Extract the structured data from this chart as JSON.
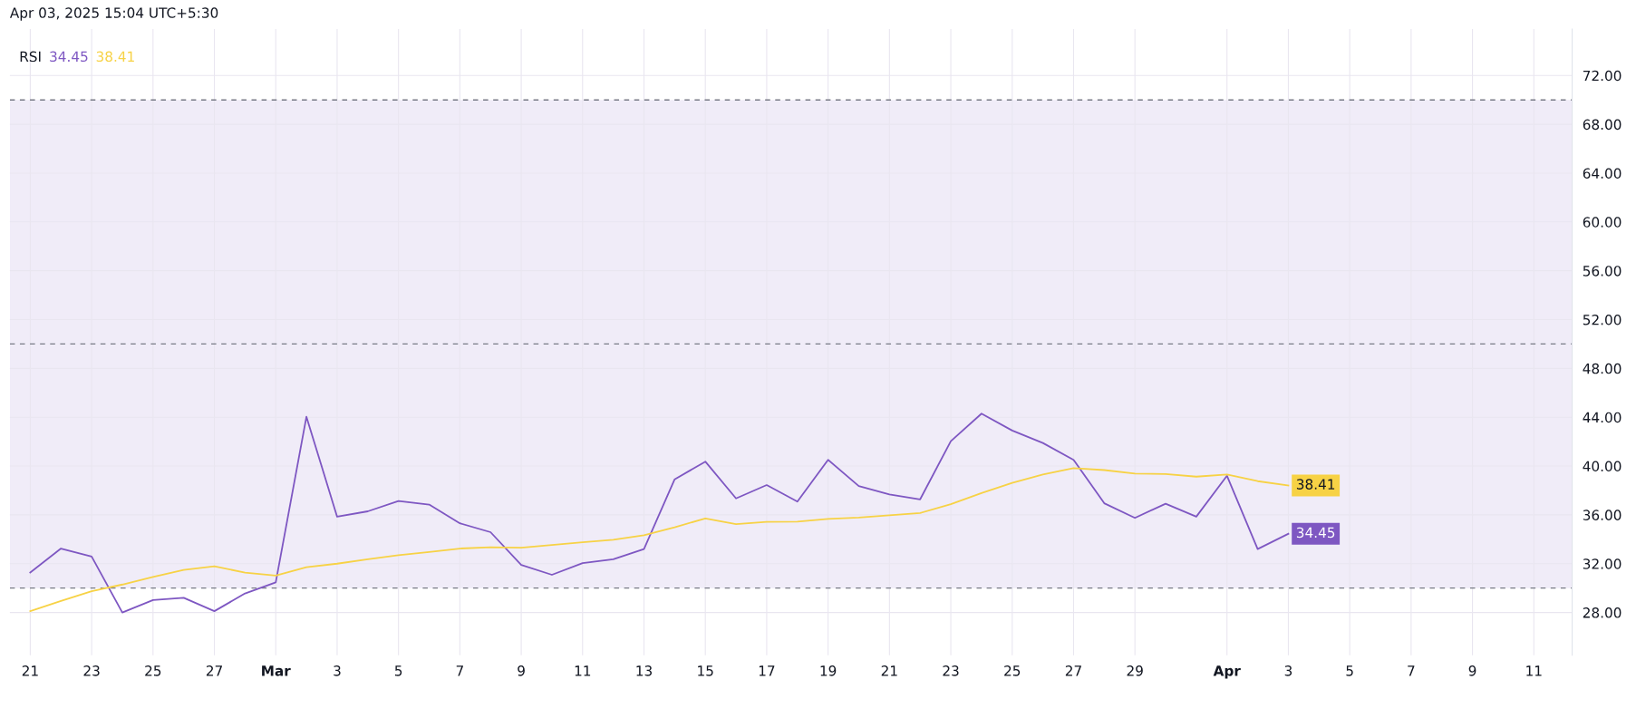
{
  "chart_data": {
    "type": "line",
    "title": "RSI",
    "annotations": [
      "Apr 03, 2025 15:04 UTC+5:30"
    ],
    "x": [
      "2025-02-21",
      "2025-02-22",
      "2025-02-23",
      "2025-02-24",
      "2025-02-25",
      "2025-02-26",
      "2025-02-27",
      "2025-02-28",
      "2025-03-01",
      "2025-03-02",
      "2025-03-03",
      "2025-03-04",
      "2025-03-05",
      "2025-03-06",
      "2025-03-07",
      "2025-03-08",
      "2025-03-09",
      "2025-03-10",
      "2025-03-11",
      "2025-03-12",
      "2025-03-13",
      "2025-03-14",
      "2025-03-15",
      "2025-03-16",
      "2025-03-17",
      "2025-03-18",
      "2025-03-19",
      "2025-03-20",
      "2025-03-21",
      "2025-03-22",
      "2025-03-23",
      "2025-03-24",
      "2025-03-25",
      "2025-03-26",
      "2025-03-27",
      "2025-03-28",
      "2025-03-29",
      "2025-03-30",
      "2025-03-31",
      "2025-04-01",
      "2025-04-02",
      "2025-04-03"
    ],
    "series": [
      {
        "color": "#7e57c2",
        "values": [
          31.27,
          33.24,
          32.58,
          28.0,
          29.02,
          29.2,
          28.11,
          29.56,
          30.47,
          44.04,
          35.85,
          36.29,
          37.13,
          36.84,
          35.31,
          34.58,
          31.89,
          31.09,
          32.04,
          32.36,
          33.2,
          38.91,
          40.36,
          37.35,
          38.44,
          37.09,
          40.51,
          38.36,
          37.67,
          37.27,
          42.04,
          44.29,
          42.91,
          41.89,
          40.51,
          36.95,
          35.75,
          36.91,
          35.85,
          39.2,
          33.2,
          34.45
        ],
        "value_labels": [
          null,
          null,
          null,
          null,
          null,
          null,
          null,
          null,
          null,
          null,
          null,
          null,
          null,
          null,
          null,
          null,
          null,
          null,
          null,
          null,
          null,
          null,
          null,
          null,
          null,
          null,
          null,
          null,
          null,
          null,
          null,
          null,
          null,
          null,
          null,
          null,
          null,
          null,
          null,
          null,
          null,
          "34.45"
        ]
      },
      {
        "color": "#f7d245",
        "values": [
          28.11,
          28.95,
          29.75,
          30.29,
          30.91,
          31.49,
          31.78,
          31.27,
          31.02,
          31.71,
          32.0,
          32.36,
          32.69,
          32.95,
          33.24,
          33.35,
          33.31,
          33.53,
          33.75,
          33.96,
          34.33,
          34.98,
          35.71,
          35.24,
          35.42,
          35.45,
          35.67,
          35.78,
          35.96,
          36.15,
          36.87,
          37.78,
          38.62,
          39.31,
          39.82,
          39.67,
          39.38,
          39.35,
          39.13,
          39.31,
          38.76,
          38.41
        ],
        "value_labels": [
          null,
          null,
          null,
          null,
          null,
          null,
          null,
          null,
          null,
          null,
          null,
          null,
          null,
          null,
          null,
          null,
          null,
          null,
          null,
          null,
          null,
          null,
          null,
          null,
          null,
          null,
          null,
          null,
          null,
          null,
          null,
          null,
          null,
          null,
          null,
          null,
          null,
          null,
          null,
          null,
          null,
          "38.41"
        ]
      }
    ],
    "xlim": [
      "2025-02-20T08:00",
      "2025-04-12T06:00"
    ],
    "xticks": [
      {
        "value": "2025-02-21",
        "label": "21"
      },
      {
        "value": "2025-02-23",
        "label": "23"
      },
      {
        "value": "2025-02-25",
        "label": "25"
      },
      {
        "value": "2025-02-27",
        "label": "27"
      },
      {
        "value": "2025-03-01",
        "label": "Mar"
      },
      {
        "value": "2025-03-03",
        "label": "3"
      },
      {
        "value": "2025-03-05",
        "label": "5"
      },
      {
        "value": "2025-03-07",
        "label": "7"
      },
      {
        "value": "2025-03-09",
        "label": "9"
      },
      {
        "value": "2025-03-11",
        "label": "11"
      },
      {
        "value": "2025-03-13",
        "label": "13"
      },
      {
        "value": "2025-03-15",
        "label": "15"
      },
      {
        "value": "2025-03-17",
        "label": "17"
      },
      {
        "value": "2025-03-19",
        "label": "19"
      },
      {
        "value": "2025-03-21",
        "label": "21"
      },
      {
        "value": "2025-03-23",
        "label": "23"
      },
      {
        "value": "2025-03-25",
        "label": "25"
      },
      {
        "value": "2025-03-27",
        "label": "27"
      },
      {
        "value": "2025-03-29",
        "label": "29"
      },
      {
        "value": "2025-04-01",
        "label": "Apr"
      },
      {
        "value": "2025-04-03",
        "label": "3"
      },
      {
        "value": "2025-04-05",
        "label": "5"
      },
      {
        "value": "2025-04-07",
        "label": "7"
      },
      {
        "value": "2025-04-09",
        "label": "9"
      },
      {
        "value": "2025-04-11",
        "label": "11"
      }
    ],
    "ylim": [
      24.5,
      75.8
    ],
    "yticks": [
      {
        "value": 28,
        "label": "28.00"
      },
      {
        "value": 32,
        "label": "32.00"
      },
      {
        "value": 36,
        "label": "36.00"
      },
      {
        "value": 40,
        "label": "40.00"
      },
      {
        "value": 44,
        "label": "44.00"
      },
      {
        "value": 48,
        "label": "48.00"
      },
      {
        "value": 52,
        "label": "52.00"
      },
      {
        "value": 56,
        "label": "56.00"
      },
      {
        "value": 60,
        "label": "60.00"
      },
      {
        "value": 64,
        "label": "64.00"
      },
      {
        "value": 68,
        "label": "68.00"
      },
      {
        "value": 72,
        "label": "72.00"
      }
    ],
    "ref_lines": [
      {
        "axis": "y",
        "value": 70,
        "color": "#787b86",
        "line_style": "dashed"
      },
      {
        "axis": "y",
        "value": 50,
        "color": "#787b86",
        "line_style": "dashed"
      },
      {
        "axis": "y",
        "value": 30,
        "color": "#787b86",
        "line_style": "dashed"
      }
    ],
    "bands": [
      {
        "axis": "y",
        "from": 30,
        "to": 70,
        "color": "#f0ecf8"
      }
    ],
    "grid": true,
    "marker": "none",
    "line_style": "solid"
  }
}
